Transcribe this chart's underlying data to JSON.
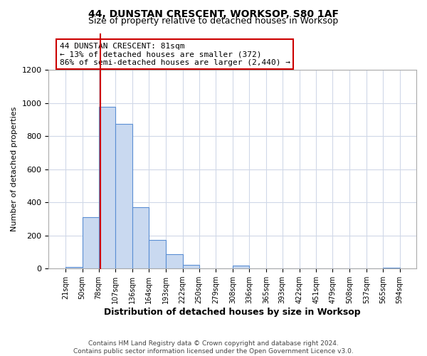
{
  "title": "44, DUNSTAN CRESCENT, WORKSOP, S80 1AF",
  "subtitle": "Size of property relative to detached houses in Worksop",
  "xlabel": "Distribution of detached houses by size in Worksop",
  "ylabel": "Number of detached properties",
  "bin_edges": [
    21,
    50,
    78,
    107,
    136,
    164,
    193,
    222,
    250,
    279,
    308,
    336,
    365,
    393,
    422,
    451,
    479,
    508,
    537,
    565,
    594
  ],
  "bin_counts": [
    10,
    310,
    980,
    875,
    370,
    175,
    85,
    22,
    0,
    0,
    20,
    0,
    0,
    0,
    0,
    0,
    0,
    0,
    0,
    5
  ],
  "bar_color": "#c9d9f0",
  "bar_edge_color": "#5b8fd4",
  "property_line_x": 81,
  "property_line_color": "#cc0000",
  "ylim": [
    0,
    1200
  ],
  "yticks": [
    0,
    200,
    400,
    600,
    800,
    1000,
    1200
  ],
  "annotation_line1": "44 DUNSTAN CRESCENT: 81sqm",
  "annotation_line2": "← 13% of detached houses are smaller (372)",
  "annotation_line3": "86% of semi-detached houses are larger (2,440) →",
  "annotation_box_color": "#cc0000",
  "footer_text": "Contains HM Land Registry data © Crown copyright and database right 2024.\nContains public sector information licensed under the Open Government Licence v3.0.",
  "background_color": "#ffffff",
  "grid_color": "#d0d8e8",
  "title_fontsize": 10,
  "subtitle_fontsize": 9,
  "ylabel_fontsize": 8,
  "xlabel_fontsize": 9,
  "tick_fontsize": 7,
  "annotation_fontsize": 8,
  "footer_fontsize": 6.5
}
